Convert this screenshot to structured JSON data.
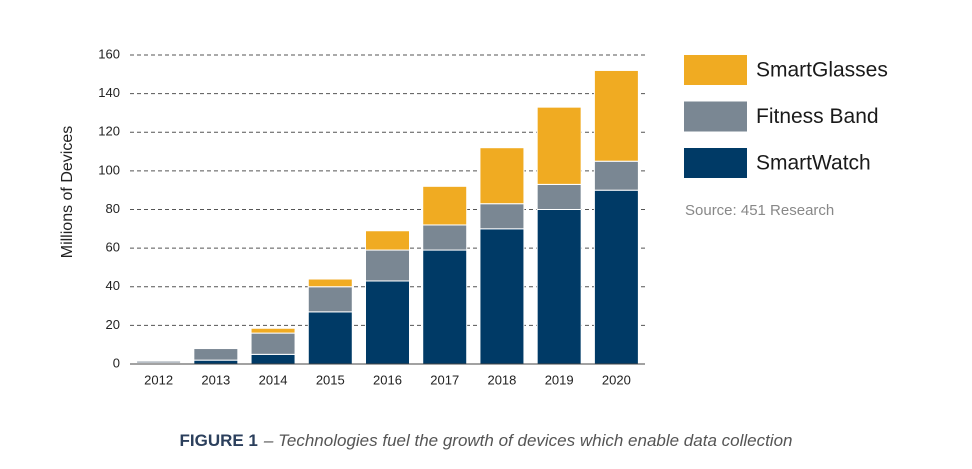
{
  "chart_data": {
    "type": "stacked_bar",
    "y_label": "Millions of Devices",
    "categories": [
      "2012",
      "2013",
      "2014",
      "2015",
      "2016",
      "2017",
      "2018",
      "2019",
      "2020"
    ],
    "series": [
      {
        "name": "SmartWatch",
        "color": "#003a66",
        "values": [
          0.5,
          2,
          5,
          27,
          43,
          59,
          70,
          80,
          90
        ]
      },
      {
        "name": "Fitness Band",
        "color": "#7a8793",
        "values": [
          1,
          6,
          11,
          13,
          16,
          13,
          13,
          13,
          15
        ]
      },
      {
        "name": "SmartGlasses",
        "color": "#f0ab22",
        "values": [
          0,
          0,
          2.5,
          4,
          10,
          20,
          29,
          40,
          47
        ]
      }
    ],
    "ylim": [
      0,
      160
    ],
    "yticks": [
      0,
      20,
      40,
      60,
      80,
      100,
      120,
      140,
      160
    ],
    "grid": true,
    "source": "Source: 451 Research",
    "figure_label": "FIGURE 1",
    "caption": "– Technologies fuel the growth of devices which enable data collection"
  }
}
